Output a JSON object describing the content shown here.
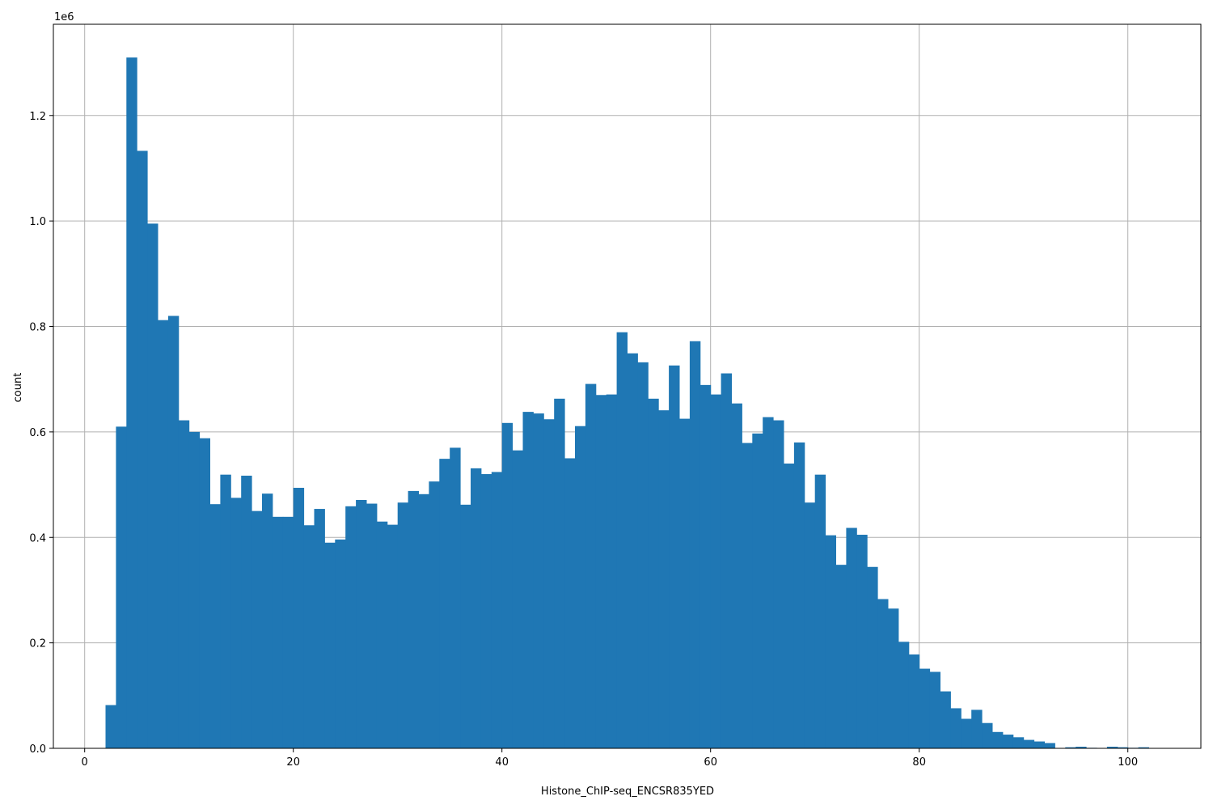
{
  "chart_data": {
    "type": "bar",
    "subtype": "histogram",
    "xlabel": "Histone_ChIP-seq_ENCSR835YED",
    "ylabel": "count",
    "y_offset_label": "1e6",
    "y_multiplier": 1000000,
    "xlim": [
      -3,
      107
    ],
    "ylim": [
      0,
      1.373
    ],
    "x_ticks": [
      0,
      20,
      40,
      60,
      80,
      100
    ],
    "y_ticks": [
      0.0,
      0.2,
      0.4,
      0.6,
      0.8,
      1.0,
      1.2
    ],
    "grid": true,
    "legend": "none",
    "bar_color": "#1f77b4",
    "bins": {
      "start": 2.0,
      "width": 1.0,
      "counts_millions": [
        0.082,
        0.61,
        1.31,
        1.133,
        0.995,
        0.812,
        0.82,
        0.622,
        0.6,
        0.588,
        0.463,
        0.519,
        0.475,
        0.517,
        0.45,
        0.483,
        0.439,
        0.439,
        0.494,
        0.423,
        0.454,
        0.39,
        0.396,
        0.459,
        0.471,
        0.464,
        0.43,
        0.424,
        0.466,
        0.488,
        0.482,
        0.506,
        0.549,
        0.57,
        0.462,
        0.531,
        0.52,
        0.524,
        0.617,
        0.565,
        0.638,
        0.635,
        0.624,
        0.663,
        0.55,
        0.611,
        0.691,
        0.67,
        0.671,
        0.789,
        0.749,
        0.732,
        0.663,
        0.641,
        0.726,
        0.625,
        0.772,
        0.689,
        0.671,
        0.711,
        0.654,
        0.579,
        0.597,
        0.628,
        0.622,
        0.54,
        0.58,
        0.466,
        0.519,
        0.404,
        0.348,
        0.418,
        0.405,
        0.344,
        0.283,
        0.265,
        0.202,
        0.178,
        0.151,
        0.145,
        0.108,
        0.076,
        0.056,
        0.073,
        0.048,
        0.031,
        0.026,
        0.021,
        0.016,
        0.013,
        0.01,
        0.0,
        0.002,
        0.003,
        0.001,
        0.0,
        0.003,
        0.002,
        0.001,
        0.002
      ]
    }
  }
}
